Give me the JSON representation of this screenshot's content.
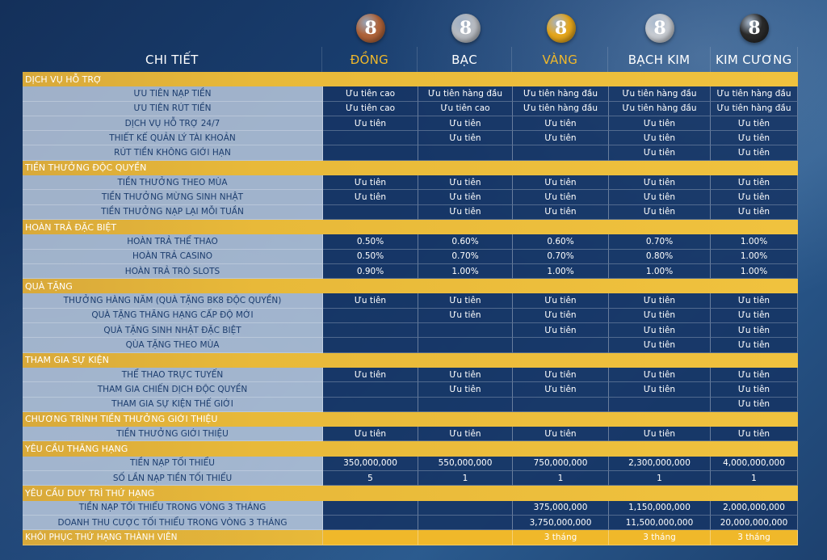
{
  "header": {
    "detail": "CHI TIẾT",
    "tiers": [
      {
        "name": "ĐỒNG",
        "color": "#f0b82a",
        "medal_color": "#b0643a"
      },
      {
        "name": "BẠC",
        "color": "#ffffff",
        "medal_color": "#b8bcc2"
      },
      {
        "name": "VÀNG",
        "color": "#f0b82a",
        "medal_color": "#e6a71c"
      },
      {
        "name": "BẠCH KIM",
        "color": "#ffffff",
        "medal_color": "#c8ccd2"
      },
      {
        "name": "KIM CƯƠNG",
        "color": "#ffffff",
        "medal_color": "#2a2a2a"
      }
    ],
    "medal_glyph": "8"
  },
  "sections": [
    {
      "title": "DỊCH VỤ HỖ TRỢ",
      "rows": [
        {
          "name": "ƯU TIÊN NẠP TIỀN",
          "values": [
            "Ưu tiên cao",
            "Ưu tiên hàng đầu",
            "Ưu tiên hàng đầu",
            "Ưu tiên hàng đầu",
            "Ưu tiên hàng đầu"
          ]
        },
        {
          "name": "ƯU TIÊN RÚT TIỀN",
          "values": [
            "Ưu tiên cao",
            "Ưu tiên cao",
            "Ưu tiên hàng đầu",
            "Ưu tiên hàng đầu",
            "Ưu tiên hàng đầu"
          ]
        },
        {
          "name": "DỊCH VỤ HỖ TRỢ 24/7",
          "values": [
            "Ưu tiên",
            "Ưu tiên",
            "Ưu tiên",
            "Ưu tiên",
            "Ưu tiên"
          ]
        },
        {
          "name": "THIẾT KẾ QUẢN LÝ TÀI KHOẢN",
          "values": [
            "",
            "Ưu tiên",
            "Ưu tiên",
            "Ưu tiên",
            "Ưu tiên"
          ]
        },
        {
          "name": "RÚT TIỀN KHÔNG GIỚI HẠN",
          "values": [
            "",
            "",
            "",
            "Ưu tiên",
            "Ưu tiên"
          ]
        }
      ]
    },
    {
      "title": "TIỀN THƯỞNG ĐỘC QUYỀN",
      "rows": [
        {
          "name": "TIỀN THƯỞNG THEO MÙA",
          "values": [
            "Ưu tiên",
            "Ưu tiên",
            "Ưu tiên",
            "Ưu tiên",
            "Ưu tiên"
          ]
        },
        {
          "name": "TIỀN THƯỞNG MỪNG SINH NHẬT",
          "values": [
            "Ưu tiên",
            "Ưu tiên",
            "Ưu tiên",
            "Ưu tiên",
            "Ưu tiên"
          ]
        },
        {
          "name": "TIỀN THƯỞNG NẠP LẠI MỖI TUẦN",
          "values": [
            "",
            "Ưu tiên",
            "Ưu tiên",
            "Ưu tiên",
            "Ưu tiên"
          ]
        }
      ]
    },
    {
      "title": "HOÀN TRẢ ĐẶC BIỆT",
      "rows": [
        {
          "name": "HOÀN TRẢ THỂ THAO",
          "values": [
            "0.50%",
            "0.60%",
            "0.60%",
            "0.70%",
            "1.00%"
          ]
        },
        {
          "name": "HOÀN TRẢ CASINO",
          "values": [
            "0.50%",
            "0.70%",
            "0.70%",
            "0.80%",
            "1.00%"
          ]
        },
        {
          "name": "HOÀN TRẢ TRÒ SLOTS",
          "values": [
            "0.90%",
            "1.00%",
            "1.00%",
            "1.00%",
            "1.00%"
          ]
        }
      ]
    },
    {
      "title": "QUÀ TẶNG",
      "rows": [
        {
          "name": "THƯỞNG HÀNG NĂM (QUÀ TẶNG BK8 ĐỘC QUYỀN)",
          "values": [
            "Ưu tiên",
            "Ưu tiên",
            "Ưu tiên",
            "Ưu tiên",
            "Ưu tiên"
          ]
        },
        {
          "name": "QUÀ TẶNG THĂNG HẠNG CẤP ĐỘ MỚI",
          "values": [
            "",
            "Ưu tiên",
            "Ưu tiên",
            "Ưu tiên",
            "Ưu tiên"
          ]
        },
        {
          "name": "QUÀ TẶNG SINH NHẬT ĐẶC BIỆT",
          "values": [
            "",
            "",
            "Ưu tiên",
            "Ưu tiên",
            "Ưu tiên"
          ]
        },
        {
          "name": "QÙA TẶNG THEO MÙA",
          "values": [
            "",
            "",
            "",
            "Ưu tiên",
            "Ưu tiên"
          ]
        }
      ]
    },
    {
      "title": "THAM GIA SỰ KIỆN",
      "rows": [
        {
          "name": "THỂ THAO TRỰC TUYẾN",
          "values": [
            "Ưu tiên",
            "Ưu tiên",
            "Ưu tiên",
            "Ưu tiên",
            "Ưu tiên"
          ]
        },
        {
          "name": "THAM GIA CHIẾN DỊCH ĐỘC QUYỀN",
          "values": [
            "",
            "Ưu tiên",
            "Ưu tiên",
            "Ưu tiên",
            "Ưu tiên"
          ]
        },
        {
          "name": "THAM GIA SỰ KIỆN THẾ GIỚI",
          "values": [
            "",
            "",
            "",
            "",
            "Ưu tiên"
          ]
        }
      ]
    },
    {
      "title": "CHƯƠNG TRÌNH TIỀN THƯỞNG GIỚI THIỆU",
      "rows": [
        {
          "name": "TIỀN THƯỞNG GIỚI THIỆU",
          "values": [
            "Ưu tiên",
            "Ưu tiên",
            "Ưu tiên",
            "Ưu tiên",
            "Ưu tiên"
          ]
        }
      ]
    },
    {
      "title": "YÊU CẦU THĂNG HẠNG",
      "rows": [
        {
          "name": "TIỀN NẠP TỐI THIỂU",
          "values": [
            "350,000,000",
            "550,000,000",
            "750,000,000",
            "2,300,000,000",
            "4,000,000,000"
          ]
        },
        {
          "name": "SỐ LẦN NẠP TIỀN TỐI THIỂU",
          "values": [
            "5",
            "1",
            "1",
            "1",
            "1"
          ]
        }
      ]
    },
    {
      "title": "YÊU CẦU DUY TRÌ THỨ HẠNG",
      "rows": [
        {
          "name": "TIỀN NẠP TỐI THIỂU TRONG VÒNG 3 THÁNG",
          "values": [
            "",
            "",
            "375,000,000",
            "1,150,000,000",
            "2,000,000,000"
          ]
        },
        {
          "name": "DOANH THU CƯỢC TỐI THIỂU TRONG VÒNG 3 THÁNG",
          "values": [
            "",
            "",
            "3,750,000,000",
            "11,500,000,000",
            "20,000,000,000"
          ]
        }
      ]
    }
  ],
  "footer_row": {
    "name": "KHÔI PHỤC THỨ HẠNG THÀNH VIÊN",
    "values": [
      "",
      "",
      "3 tháng",
      "3 tháng",
      "3 tháng"
    ]
  }
}
